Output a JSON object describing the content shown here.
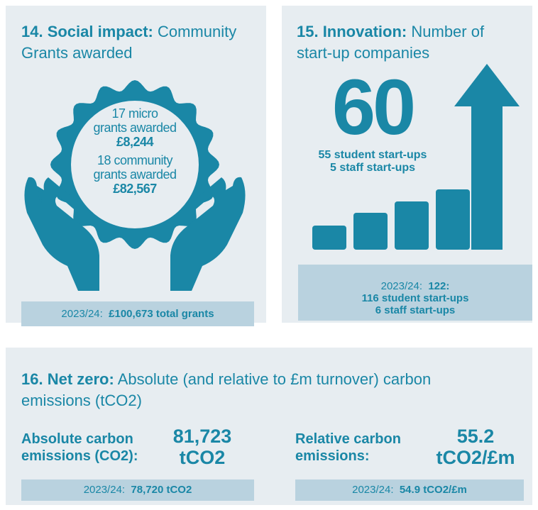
{
  "panels": [
    {
      "title_bold": "14. Social impact:",
      "title_light": "Community Grants awarded",
      "badge": [
        {
          "lines": [
            "17 micro",
            "grants awarded"
          ],
          "amount": "£8,244"
        },
        {
          "lines": [
            "18 community",
            "grants awarded"
          ],
          "amount": "£82,567"
        }
      ],
      "footer": {
        "year": "2023/24:",
        "lines": [
          "£100,673 total grants"
        ]
      }
    },
    {
      "title_bold": "15. Innovation:",
      "title_light": "Number of start-up companies",
      "big_number": "60",
      "details": [
        "55 student start-ups",
        "5 staff start-ups"
      ],
      "footer": {
        "year": "2023/24:",
        "lines": [
          "122:",
          "116 student start-ups",
          "6 staff start-ups"
        ]
      }
    },
    {
      "title_bold": "16. Net zero:",
      "title_light": "Absolute (and relative to £m turnover) carbon emissions (tCO2)",
      "metrics": [
        {
          "label": [
            "Absolute carbon",
            "emissions (CO2):"
          ],
          "value": [
            "81,723",
            "tCO2"
          ],
          "footer": {
            "year": "2023/24:",
            "value": "78,720 tCO2"
          }
        },
        {
          "label": [
            "Relative carbon",
            "emissions:"
          ],
          "value": [
            "55.2",
            "tCO2/£m"
          ],
          "footer": {
            "year": "2023/24:",
            "value": "54.9 tCO2/£m"
          }
        }
      ]
    }
  ]
}
